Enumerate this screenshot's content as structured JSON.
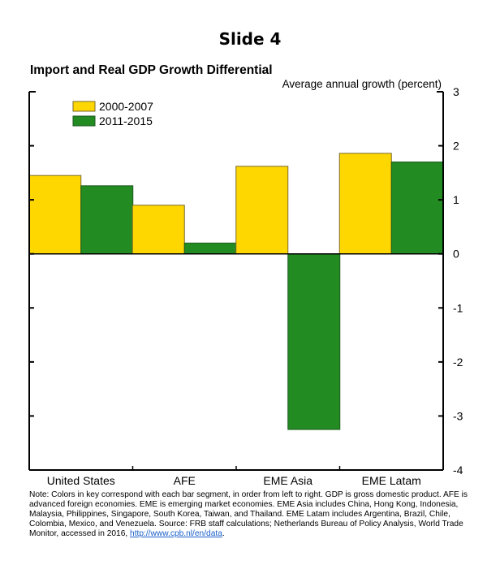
{
  "slide": {
    "title": "Slide 4"
  },
  "chart_data": {
    "type": "bar",
    "title": "Import and Real GDP Growth Differential",
    "ylabel": "Average annual growth (percent)",
    "xlabel": "",
    "categories": [
      "United States",
      "AFE",
      "EME Asia",
      "EME Latam"
    ],
    "series": [
      {
        "name": "2000-2007",
        "color": "#FFD700",
        "values": [
          1.45,
          0.9,
          1.62,
          1.86
        ]
      },
      {
        "name": "2011-2015",
        "color": "#228B22",
        "values": [
          1.26,
          0.2,
          -3.25,
          1.7
        ]
      }
    ],
    "ylim": [
      -4,
      3
    ],
    "yticks": [
      3,
      2,
      1,
      0,
      -1,
      -2,
      -3,
      -4
    ],
    "y_axis_side": "right",
    "legend": "top-left",
    "grid": false
  },
  "note": {
    "text": "Note: Colors in key correspond with each bar segment, in order from left to right. GDP is gross domestic product. AFE is advanced foreign economies. EME is emerging market economies. EME Asia includes China, Hong Kong, Indonesia, Malaysia, Philippines, Singapore, South Korea, Taiwan, and Thailand. EME Latam includes Argentina, Brazil, Chile, Colombia, Mexico, and Venezuela. Source: FRB staff calculations; Netherlands Bureau of Policy Analysis, World Trade Monitor, accessed in 2016, ",
    "link": "http://www.cpb.nl/en/data",
    "end": "."
  }
}
